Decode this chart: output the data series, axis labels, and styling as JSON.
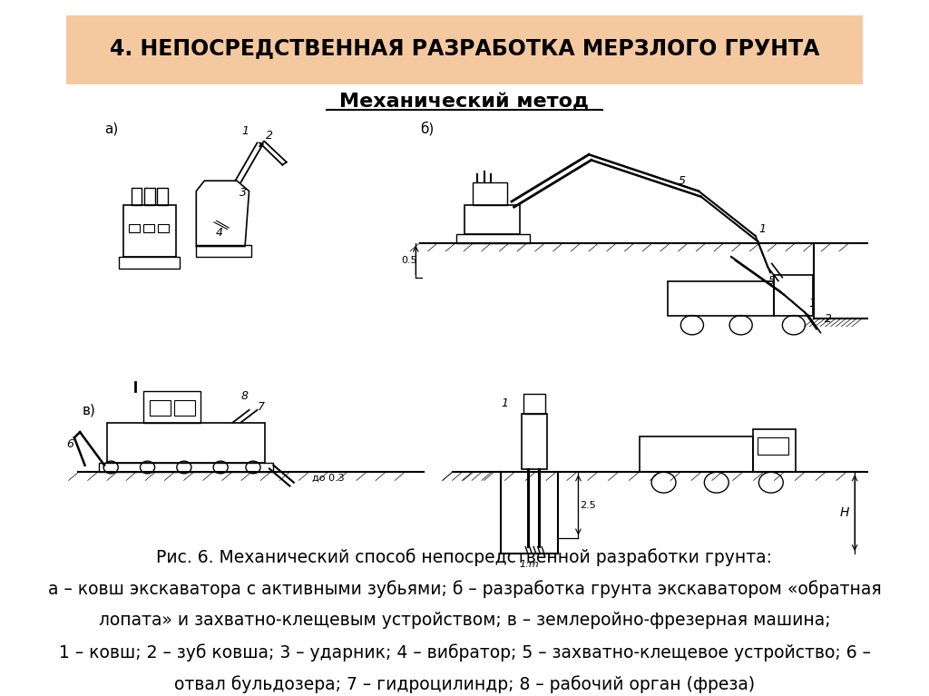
{
  "title": "4. НЕПОСРЕДСТВЕННАЯ РАЗРАБОТКА МЕРЗЛОГО ГРУНТА",
  "subtitle": "Механический метод",
  "title_bg_color": "#f5c9a0",
  "background_color": "#ffffff",
  "caption_line1": "Рис. 6. Механический способ непосредственной разработки грунта:",
  "caption_line2": "а – ковш экскаватора с активными зубьями; б – разработка грунта экскаватором «обратная",
  "caption_line3": "лопата» и захватно-клещевым устройством; в – землеройно-фрезерная машина;",
  "caption_line4": "1 – ковш; 2 – зуб ковша; 3 – ударник; 4 – вибратор; 5 – захватно-клещевое устройство; 6 –",
  "caption_line5": "отвал бульдозера; 7 – гидроцилиндр; 8 – рабочий орган (фреза)",
  "label_a": "а)",
  "label_b": "б)",
  "label_v": "в)",
  "title_fontsize": 17,
  "subtitle_fontsize": 16,
  "caption_fontsize": 13.5
}
